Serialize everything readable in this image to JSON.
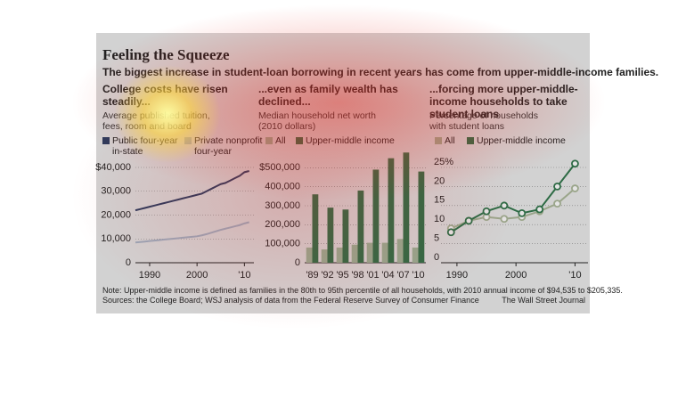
{
  "header": {
    "title": "Feeling the Squeeze",
    "subtitle": "The biggest increase in student-loan borrowing in recent years has come from upper-middle-income families."
  },
  "footer": {
    "note": "Note: Upper-middle income is defined as families in the 80th to 95th percentile of all households, with 2010 annual income of $94,535 to $205,335.",
    "sources": "Sources: the College Board; WSJ analysis of data from the Federal Reserve Survey of Consumer Finance",
    "credit": "The Wall Street Journal"
  },
  "chart_data": [
    {
      "type": "line",
      "heading": "College costs have risen steadily...",
      "subheading": "Average published tuition, fees, room and board",
      "x": [
        1987,
        1988,
        1989,
        1990,
        1991,
        1992,
        1993,
        1994,
        1995,
        1996,
        1997,
        1998,
        1999,
        2000,
        2001,
        2002,
        2003,
        2004,
        2005,
        2006,
        2007,
        2008,
        2009,
        2010,
        2011
      ],
      "series": [
        {
          "name": "Public four-year in-state",
          "color": "#2b3a5c",
          "values": [
            22000,
            22500,
            23000,
            23500,
            24000,
            24500,
            25000,
            25500,
            26000,
            26500,
            27000,
            27500,
            28000,
            28500,
            29000,
            30000,
            31000,
            32000,
            33000,
            33500,
            34500,
            35500,
            36500,
            38000,
            38500
          ]
        },
        {
          "name": "Private nonprofit four-year",
          "color": "#9aa7b8",
          "values": [
            8500,
            8700,
            8900,
            9100,
            9300,
            9500,
            9700,
            9900,
            10100,
            10300,
            10500,
            10700,
            10900,
            11100,
            11500,
            12000,
            12600,
            13200,
            13800,
            14300,
            14800,
            15300,
            15800,
            16500,
            17000
          ]
        }
      ],
      "xlim": [
        1987,
        2012
      ],
      "xticks": [
        1990,
        2000,
        {
          "value": 2010,
          "label": "'10"
        }
      ],
      "ylim": [
        0,
        40000
      ],
      "yticks": [
        0,
        {
          "value": 10000,
          "label": "10,000"
        },
        {
          "value": 20000,
          "label": "20,000"
        },
        {
          "value": 30000,
          "label": "30,000"
        },
        {
          "value": 40000,
          "label": "$40,000"
        }
      ],
      "grid": true
    },
    {
      "type": "bar",
      "heading": "...even as family wealth has declined...",
      "subheading": "Median household net worth (2010 dollars)",
      "categories": [
        "'89",
        "'92",
        "'95",
        "'98",
        "'01",
        "'04",
        "'07",
        "'10"
      ],
      "series": [
        {
          "name": "All",
          "color": "#94a98f",
          "values": [
            80000,
            70000,
            80000,
            95000,
            105000,
            105000,
            125000,
            80000
          ]
        },
        {
          "name": "Upper-middle income",
          "color": "#2e6b45",
          "values": [
            360000,
            290000,
            280000,
            380000,
            490000,
            550000,
            580000,
            480000
          ]
        }
      ],
      "ylim": [
        0,
        600000
      ],
      "yticks": [
        0,
        {
          "value": 100000,
          "label": "100,000"
        },
        {
          "value": 200000,
          "label": "200,000"
        },
        {
          "value": 300000,
          "label": "300,000"
        },
        {
          "value": 400000,
          "label": "400,000"
        },
        {
          "value": 500000,
          "label": "$500,000"
        }
      ],
      "grid": true
    },
    {
      "type": "line",
      "heading": "...forcing more upper-middle-income households to take student loans",
      "subheading": "Percentage of households with student loans",
      "x": [
        1989,
        1992,
        1995,
        1998,
        2001,
        2004,
        2007,
        2010
      ],
      "series": [
        {
          "name": "All",
          "color": "#9aa58a",
          "values": [
            9,
            11,
            12,
            11.5,
            12,
            13.5,
            15.5,
            19.5
          ]
        },
        {
          "name": "Upper-middle income",
          "color": "#2e6b45",
          "values": [
            8,
            11,
            13.5,
            15,
            13,
            14,
            20,
            26
          ]
        }
      ],
      "xlim": [
        1987.3,
        2012.2
      ],
      "xticks": [
        1990,
        2000,
        {
          "value": 2010,
          "label": "'10"
        }
      ],
      "ylim": [
        0,
        30
      ],
      "yticks": [
        0,
        5,
        10,
        15,
        20,
        {
          "value": 25,
          "label": "25%"
        }
      ],
      "grid": true,
      "markers": true
    }
  ]
}
